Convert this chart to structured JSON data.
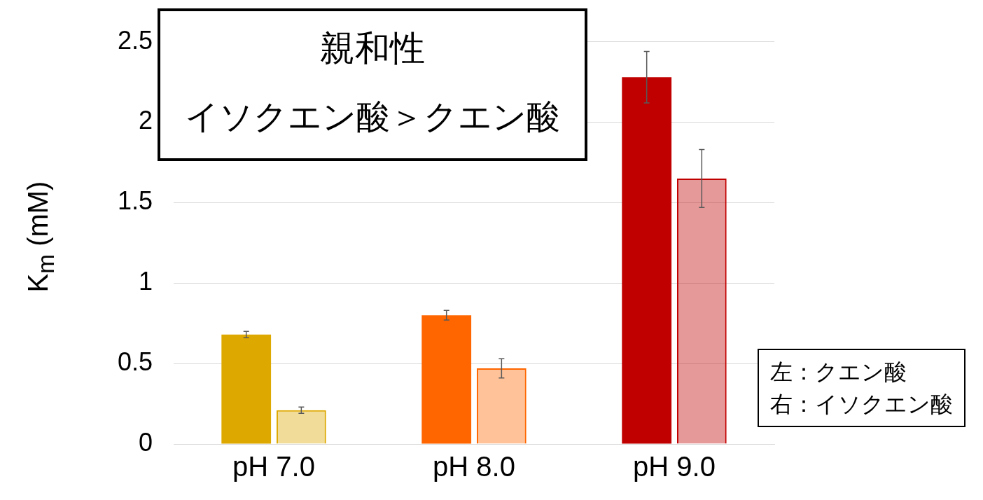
{
  "chart_data": {
    "type": "bar",
    "title": "親和性",
    "subtitle": "イソクエン酸＞クエン酸",
    "ylabel": "K$_{m}$ (mM)",
    "categories": [
      "pH 7.0",
      "pH 8.0",
      "pH 9.0"
    ],
    "series": [
      {
        "colors": [
          "#dda800",
          "#ff6600",
          "#c00000"
        ],
        "values": [
          0.68,
          0.8,
          2.28
        ],
        "errors": [
          0.02,
          0.03,
          0.16
        ]
      },
      {
        "colors": [
          "#dda800",
          "#ff6600",
          "#c00000"
        ],
        "values": [
          0.21,
          0.47,
          1.65
        ],
        "errors": [
          0.02,
          0.06,
          0.18
        ]
      }
    ],
    "ylim": [
      0,
      2.5
    ],
    "yticks": [
      0,
      0.5,
      1,
      1.5,
      2,
      2.5
    ],
    "grid": "y",
    "legend": false,
    "annotations": [
      "左：クエン酸",
      "右：イソクエン酸"
    ]
  }
}
